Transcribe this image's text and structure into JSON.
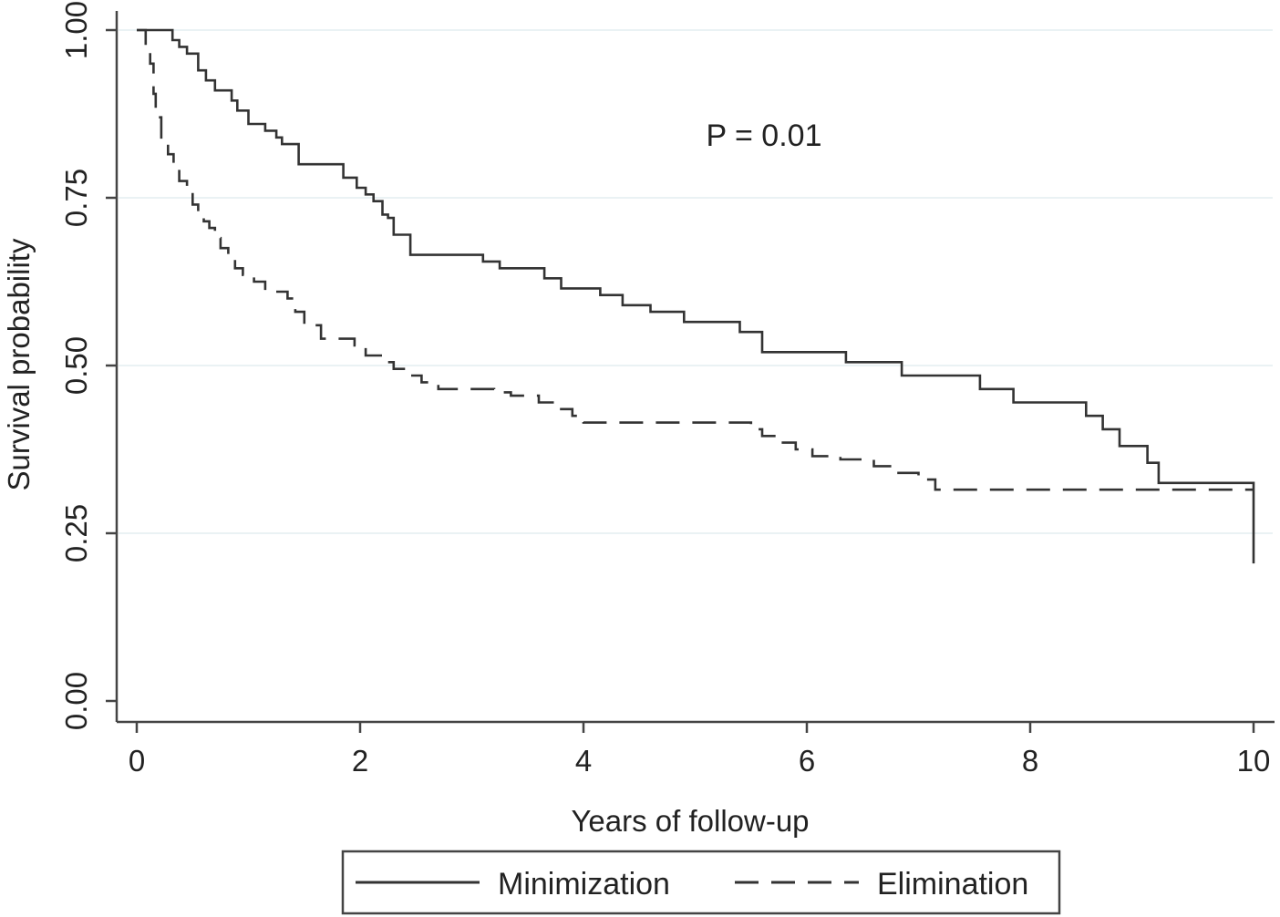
{
  "chart_data": {
    "type": "line",
    "title": "",
    "xlabel": "Years of follow-up",
    "ylabel": "Survival probability",
    "xlim": [
      0,
      10
    ],
    "ylim": [
      0,
      1
    ],
    "x_ticks": [
      0,
      2,
      4,
      6,
      8,
      10
    ],
    "x_tick_labels": [
      "0",
      "2",
      "4",
      "6",
      "8",
      "10"
    ],
    "y_ticks": [
      0,
      0.25,
      0.5,
      0.75,
      1.0
    ],
    "y_tick_labels": [
      "0.00",
      "0.25",
      "0.50",
      "0.75",
      "1.00"
    ],
    "grid": "horizontal",
    "legend_position": "bottom",
    "annotation": "P = 0.01",
    "colors": {
      "line": "#333333",
      "grid": "#e3eef0",
      "axis": "#444444",
      "text": "#222222"
    },
    "series": [
      {
        "name": "Minimization",
        "style": "solid",
        "points": [
          [
            0.0,
            1.0
          ],
          [
            0.3,
            1.0
          ],
          [
            0.32,
            0.985
          ],
          [
            0.38,
            0.975
          ],
          [
            0.45,
            0.965
          ],
          [
            0.55,
            0.94
          ],
          [
            0.62,
            0.925
          ],
          [
            0.7,
            0.91
          ],
          [
            0.85,
            0.895
          ],
          [
            0.9,
            0.88
          ],
          [
            1.0,
            0.86
          ],
          [
            1.15,
            0.85
          ],
          [
            1.25,
            0.84
          ],
          [
            1.3,
            0.83
          ],
          [
            1.45,
            0.8
          ],
          [
            1.85,
            0.78
          ],
          [
            1.97,
            0.765
          ],
          [
            2.05,
            0.755
          ],
          [
            2.12,
            0.745
          ],
          [
            2.2,
            0.725
          ],
          [
            2.25,
            0.72
          ],
          [
            2.3,
            0.695
          ],
          [
            2.45,
            0.665
          ],
          [
            3.1,
            0.655
          ],
          [
            3.25,
            0.645
          ],
          [
            3.65,
            0.63
          ],
          [
            3.8,
            0.615
          ],
          [
            4.15,
            0.605
          ],
          [
            4.35,
            0.59
          ],
          [
            4.6,
            0.58
          ],
          [
            4.9,
            0.565
          ],
          [
            5.4,
            0.55
          ],
          [
            5.6,
            0.52
          ],
          [
            6.35,
            0.505
          ],
          [
            6.85,
            0.485
          ],
          [
            7.55,
            0.465
          ],
          [
            7.85,
            0.445
          ],
          [
            8.5,
            0.425
          ],
          [
            8.65,
            0.405
          ],
          [
            8.8,
            0.38
          ],
          [
            9.05,
            0.355
          ],
          [
            9.15,
            0.325
          ],
          [
            10.0,
            0.32
          ],
          [
            10.0,
            0.205
          ]
        ]
      },
      {
        "name": "Elimination",
        "style": "dashed",
        "points": [
          [
            0.0,
            1.0
          ],
          [
            0.08,
            0.975
          ],
          [
            0.12,
            0.95
          ],
          [
            0.15,
            0.905
          ],
          [
            0.17,
            0.87
          ],
          [
            0.22,
            0.84
          ],
          [
            0.28,
            0.815
          ],
          [
            0.33,
            0.8
          ],
          [
            0.38,
            0.775
          ],
          [
            0.45,
            0.76
          ],
          [
            0.5,
            0.74
          ],
          [
            0.55,
            0.73
          ],
          [
            0.6,
            0.715
          ],
          [
            0.65,
            0.705
          ],
          [
            0.7,
            0.69
          ],
          [
            0.75,
            0.675
          ],
          [
            0.82,
            0.66
          ],
          [
            0.88,
            0.645
          ],
          [
            0.95,
            0.635
          ],
          [
            1.05,
            0.625
          ],
          [
            1.15,
            0.61
          ],
          [
            1.35,
            0.6
          ],
          [
            1.42,
            0.58
          ],
          [
            1.5,
            0.56
          ],
          [
            1.65,
            0.54
          ],
          [
            1.95,
            0.53
          ],
          [
            2.05,
            0.515
          ],
          [
            2.2,
            0.505
          ],
          [
            2.3,
            0.495
          ],
          [
            2.45,
            0.485
          ],
          [
            2.55,
            0.475
          ],
          [
            2.7,
            0.465
          ],
          [
            3.2,
            0.46
          ],
          [
            3.35,
            0.455
          ],
          [
            3.6,
            0.445
          ],
          [
            3.8,
            0.435
          ],
          [
            3.9,
            0.425
          ],
          [
            4.0,
            0.415
          ],
          [
            5.5,
            0.405
          ],
          [
            5.6,
            0.395
          ],
          [
            5.75,
            0.385
          ],
          [
            5.9,
            0.375
          ],
          [
            6.05,
            0.365
          ],
          [
            6.3,
            0.36
          ],
          [
            6.6,
            0.35
          ],
          [
            6.8,
            0.34
          ],
          [
            7.0,
            0.33
          ],
          [
            7.15,
            0.315
          ],
          [
            10.0,
            0.315
          ]
        ]
      }
    ]
  }
}
